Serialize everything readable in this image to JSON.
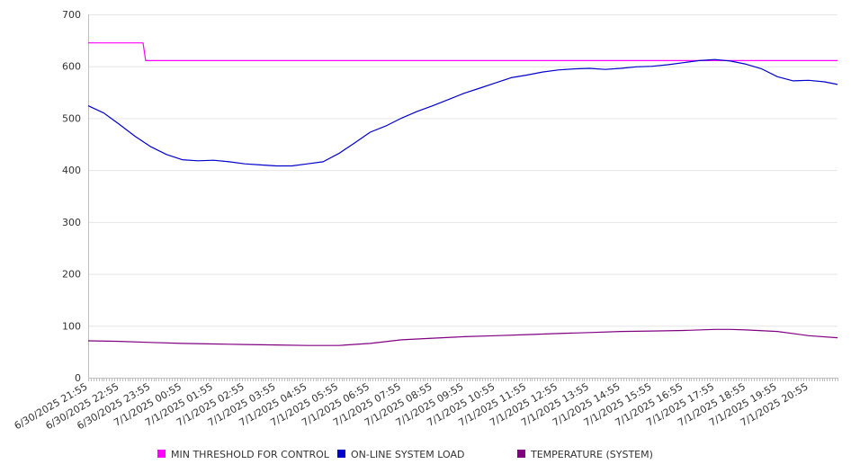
{
  "chart_data": {
    "type": "line",
    "title": "",
    "xlabel": "",
    "ylabel": "",
    "ylim": [
      0,
      700
    ],
    "yticks": [
      0,
      100,
      200,
      300,
      400,
      500,
      600,
      700
    ],
    "grid": true,
    "legend_position": "bottom",
    "x_labels": [
      "6/30/2025 21:55",
      "6/30/2025 22:55",
      "6/30/2025 23:55",
      "7/1/2025 00:55",
      "7/1/2025 01:55",
      "7/1/2025 02:55",
      "7/1/2025 03:55",
      "7/1/2025 04:55",
      "7/1/2025 05:55",
      "7/1/2025 06:55",
      "7/1/2025 07:55",
      "7/1/2025 08:55",
      "7/1/2025 09:55",
      "7/1/2025 10:55",
      "7/1/2025 11:55",
      "7/1/2025 12:55",
      "7/1/2025 13:55",
      "7/1/2025 14:55",
      "7/1/2025 15:55",
      "7/1/2025 16:55",
      "7/1/2025 17:55",
      "7/1/2025 18:55",
      "7/1/2025 19:55",
      "7/1/2025 20:55"
    ],
    "x_end": "7/1/2025 21:50",
    "x_step_minutes": 5,
    "series": [
      {
        "name": "MIN THRESHOLD FOR CONTROL",
        "color": "#ff00ff",
        "points": [
          [
            "6/30/2025 21:55",
            645
          ],
          [
            "6/30/2025 23:40",
            645
          ],
          [
            "6/30/2025 23:45",
            611
          ],
          [
            "7/1/2025 21:50",
            611
          ]
        ]
      },
      {
        "name": "ON-LINE SYSTEM LOAD",
        "color": "#0000cc",
        "points": [
          [
            "6/30/2025 21:55",
            524
          ],
          [
            "6/30/2025 22:25",
            510
          ],
          [
            "6/30/2025 22:55",
            488
          ],
          [
            "6/30/2025 23:25",
            465
          ],
          [
            "6/30/2025 23:55",
            445
          ],
          [
            "7/1/2025 00:25",
            430
          ],
          [
            "7/1/2025 00:55",
            420
          ],
          [
            "7/1/2025 01:25",
            418
          ],
          [
            "7/1/2025 01:55",
            419
          ],
          [
            "7/1/2025 02:25",
            416
          ],
          [
            "7/1/2025 02:55",
            412
          ],
          [
            "7/1/2025 03:25",
            410
          ],
          [
            "7/1/2025 03:55",
            408
          ],
          [
            "7/1/2025 04:25",
            408
          ],
          [
            "7/1/2025 04:55",
            412
          ],
          [
            "7/1/2025 05:25",
            416
          ],
          [
            "7/1/2025 05:55",
            432
          ],
          [
            "7/1/2025 06:25",
            452
          ],
          [
            "7/1/2025 06:55",
            473
          ],
          [
            "7/1/2025 07:25",
            485
          ],
          [
            "7/1/2025 07:55",
            500
          ],
          [
            "7/1/2025 08:25",
            513
          ],
          [
            "7/1/2025 08:55",
            524
          ],
          [
            "7/1/2025 09:25",
            536
          ],
          [
            "7/1/2025 09:55",
            548
          ],
          [
            "7/1/2025 10:25",
            558
          ],
          [
            "7/1/2025 10:55",
            568
          ],
          [
            "7/1/2025 11:25",
            578
          ],
          [
            "7/1/2025 11:55",
            583
          ],
          [
            "7/1/2025 12:25",
            589
          ],
          [
            "7/1/2025 12:55",
            593
          ],
          [
            "7/1/2025 13:25",
            595
          ],
          [
            "7/1/2025 13:55",
            596
          ],
          [
            "7/1/2025 14:25",
            594
          ],
          [
            "7/1/2025 14:55",
            596
          ],
          [
            "7/1/2025 15:25",
            599
          ],
          [
            "7/1/2025 15:55",
            600
          ],
          [
            "7/1/2025 16:25",
            603
          ],
          [
            "7/1/2025 16:55",
            607
          ],
          [
            "7/1/2025 17:25",
            611
          ],
          [
            "7/1/2025 17:55",
            613
          ],
          [
            "7/1/2025 18:25",
            610
          ],
          [
            "7/1/2025 18:55",
            604
          ],
          [
            "7/1/2025 19:25",
            595
          ],
          [
            "7/1/2025 19:55",
            580
          ],
          [
            "7/1/2025 20:25",
            572
          ],
          [
            "7/1/2025 20:55",
            573
          ],
          [
            "7/1/2025 21:25",
            570
          ],
          [
            "7/1/2025 21:50",
            565
          ]
        ]
      },
      {
        "name": "TEMPERATURE (SYSTEM)",
        "color": "#800080",
        "points": [
          [
            "6/30/2025 21:55",
            71
          ],
          [
            "6/30/2025 22:55",
            70
          ],
          [
            "6/30/2025 23:55",
            68
          ],
          [
            "7/1/2025 00:55",
            66
          ],
          [
            "7/1/2025 01:55",
            65
          ],
          [
            "7/1/2025 02:55",
            64
          ],
          [
            "7/1/2025 03:55",
            63
          ],
          [
            "7/1/2025 04:55",
            62
          ],
          [
            "7/1/2025 05:55",
            62
          ],
          [
            "7/1/2025 06:55",
            66
          ],
          [
            "7/1/2025 07:55",
            73
          ],
          [
            "7/1/2025 08:55",
            76
          ],
          [
            "7/1/2025 09:55",
            79
          ],
          [
            "7/1/2025 10:55",
            81
          ],
          [
            "7/1/2025 11:55",
            83
          ],
          [
            "7/1/2025 12:55",
            85
          ],
          [
            "7/1/2025 13:55",
            87
          ],
          [
            "7/1/2025 14:55",
            89
          ],
          [
            "7/1/2025 15:55",
            90
          ],
          [
            "7/1/2025 16:55",
            91
          ],
          [
            "7/1/2025 17:55",
            93
          ],
          [
            "7/1/2025 18:25",
            93
          ],
          [
            "7/1/2025 18:55",
            92
          ],
          [
            "7/1/2025 19:55",
            89
          ],
          [
            "7/1/2025 20:55",
            81
          ],
          [
            "7/1/2025 21:50",
            77
          ]
        ]
      }
    ]
  }
}
